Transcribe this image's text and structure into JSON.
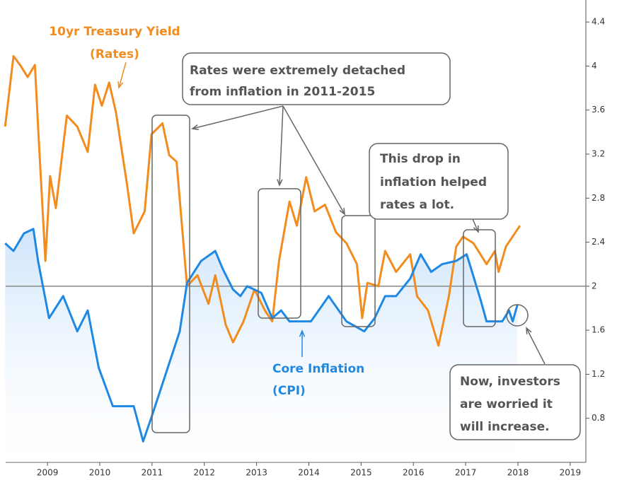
{
  "chart_data": {
    "type": "line",
    "xlim": [
      2008.2,
      2019.3
    ],
    "xticks": [
      2009,
      2010,
      2011,
      2012,
      2013,
      2014,
      2015,
      2016,
      2017,
      2018,
      2019
    ],
    "ylim": [
      0.4,
      4.6
    ],
    "yticks": [
      0.8,
      1.2,
      1.6,
      2,
      2.4,
      2.8,
      3.2,
      3.6,
      4,
      4.4
    ],
    "hline": 2,
    "series": [
      {
        "name": "10yr Treasury Yield (Rates)",
        "color": "#f28c1e",
        "x": [
          2008.19,
          2008.35,
          2008.49,
          2008.62,
          2008.76,
          2008.82,
          2008.96,
          2009.05,
          2009.16,
          2009.37,
          2009.57,
          2009.77,
          2009.91,
          2010.04,
          2010.18,
          2010.31,
          2010.52,
          2010.65,
          2010.86,
          2010.99,
          2011.2,
          2011.33,
          2011.47,
          2011.67,
          2011.87,
          2012.08,
          2012.21,
          2012.41,
          2012.55,
          2012.75,
          2012.96,
          2013.16,
          2013.3,
          2013.43,
          2013.63,
          2013.77,
          2013.95,
          2014.11,
          2014.31,
          2014.52,
          2014.72,
          2014.92,
          2015.02,
          2015.12,
          2015.33,
          2015.46,
          2015.67,
          2015.94,
          2016.07,
          2016.28,
          2016.48,
          2016.68,
          2016.82,
          2016.95,
          2017.15,
          2017.4,
          2017.56,
          2017.63,
          2017.77,
          2018.04
        ],
        "values": [
          3.45,
          4.09,
          4.0,
          3.9,
          4.01,
          3.45,
          2.23,
          3.0,
          2.71,
          3.55,
          3.45,
          3.22,
          3.83,
          3.64,
          3.85,
          3.58,
          2.93,
          2.48,
          2.68,
          3.38,
          3.48,
          3.19,
          3.13,
          2.0,
          2.1,
          1.84,
          2.1,
          1.65,
          1.49,
          1.68,
          1.97,
          1.78,
          1.68,
          2.23,
          2.77,
          2.55,
          2.99,
          2.68,
          2.74,
          2.49,
          2.39,
          2.2,
          1.71,
          2.03,
          2.0,
          2.32,
          2.13,
          2.29,
          1.91,
          1.78,
          1.46,
          1.91,
          2.36,
          2.45,
          2.39,
          2.2,
          2.32,
          2.13,
          2.36,
          2.55
        ]
      },
      {
        "name": "Core Inflation (CPI)",
        "color": "#1e88e5",
        "x": [
          2008.19,
          2008.35,
          2008.55,
          2008.73,
          2008.82,
          2009.03,
          2009.3,
          2009.57,
          2009.77,
          2009.98,
          2010.25,
          2010.65,
          2010.83,
          2010.99,
          2011.26,
          2011.53,
          2011.67,
          2011.94,
          2012.21,
          2012.35,
          2012.55,
          2012.69,
          2012.82,
          2013.09,
          2013.3,
          2013.47,
          2013.63,
          2014.04,
          2014.38,
          2014.72,
          2015.06,
          2015.26,
          2015.46,
          2015.67,
          2015.94,
          2016.14,
          2016.34,
          2016.55,
          2016.82,
          2017.02,
          2017.29,
          2017.4,
          2017.7,
          2017.83,
          2017.9,
          2017.99
        ],
        "values": [
          2.39,
          2.32,
          2.48,
          2.52,
          2.23,
          1.71,
          1.91,
          1.59,
          1.78,
          1.26,
          0.91,
          0.91,
          0.59,
          0.81,
          1.2,
          1.59,
          2.03,
          2.23,
          2.32,
          2.16,
          1.97,
          1.91,
          2.0,
          1.94,
          1.71,
          1.78,
          1.68,
          1.68,
          1.91,
          1.68,
          1.59,
          1.71,
          1.91,
          1.91,
          2.07,
          2.29,
          2.13,
          2.2,
          2.23,
          2.29,
          1.87,
          1.68,
          1.68,
          1.78,
          1.68,
          1.83
        ]
      }
    ],
    "annotations": [
      {
        "lines": [
          "10yr Treasury Yield",
          "(Rates)"
        ]
      },
      {
        "lines": [
          "Rates were extremely detached",
          "from inflation in 2011-2015"
        ]
      },
      {
        "lines": [
          "This drop in",
          "inflation helped",
          "rates a lot."
        ]
      },
      {
        "lines": [
          "Core Inflation",
          "(CPI)"
        ]
      },
      {
        "lines": [
          "Now, investors",
          "are worried it",
          "will increase."
        ]
      }
    ]
  }
}
